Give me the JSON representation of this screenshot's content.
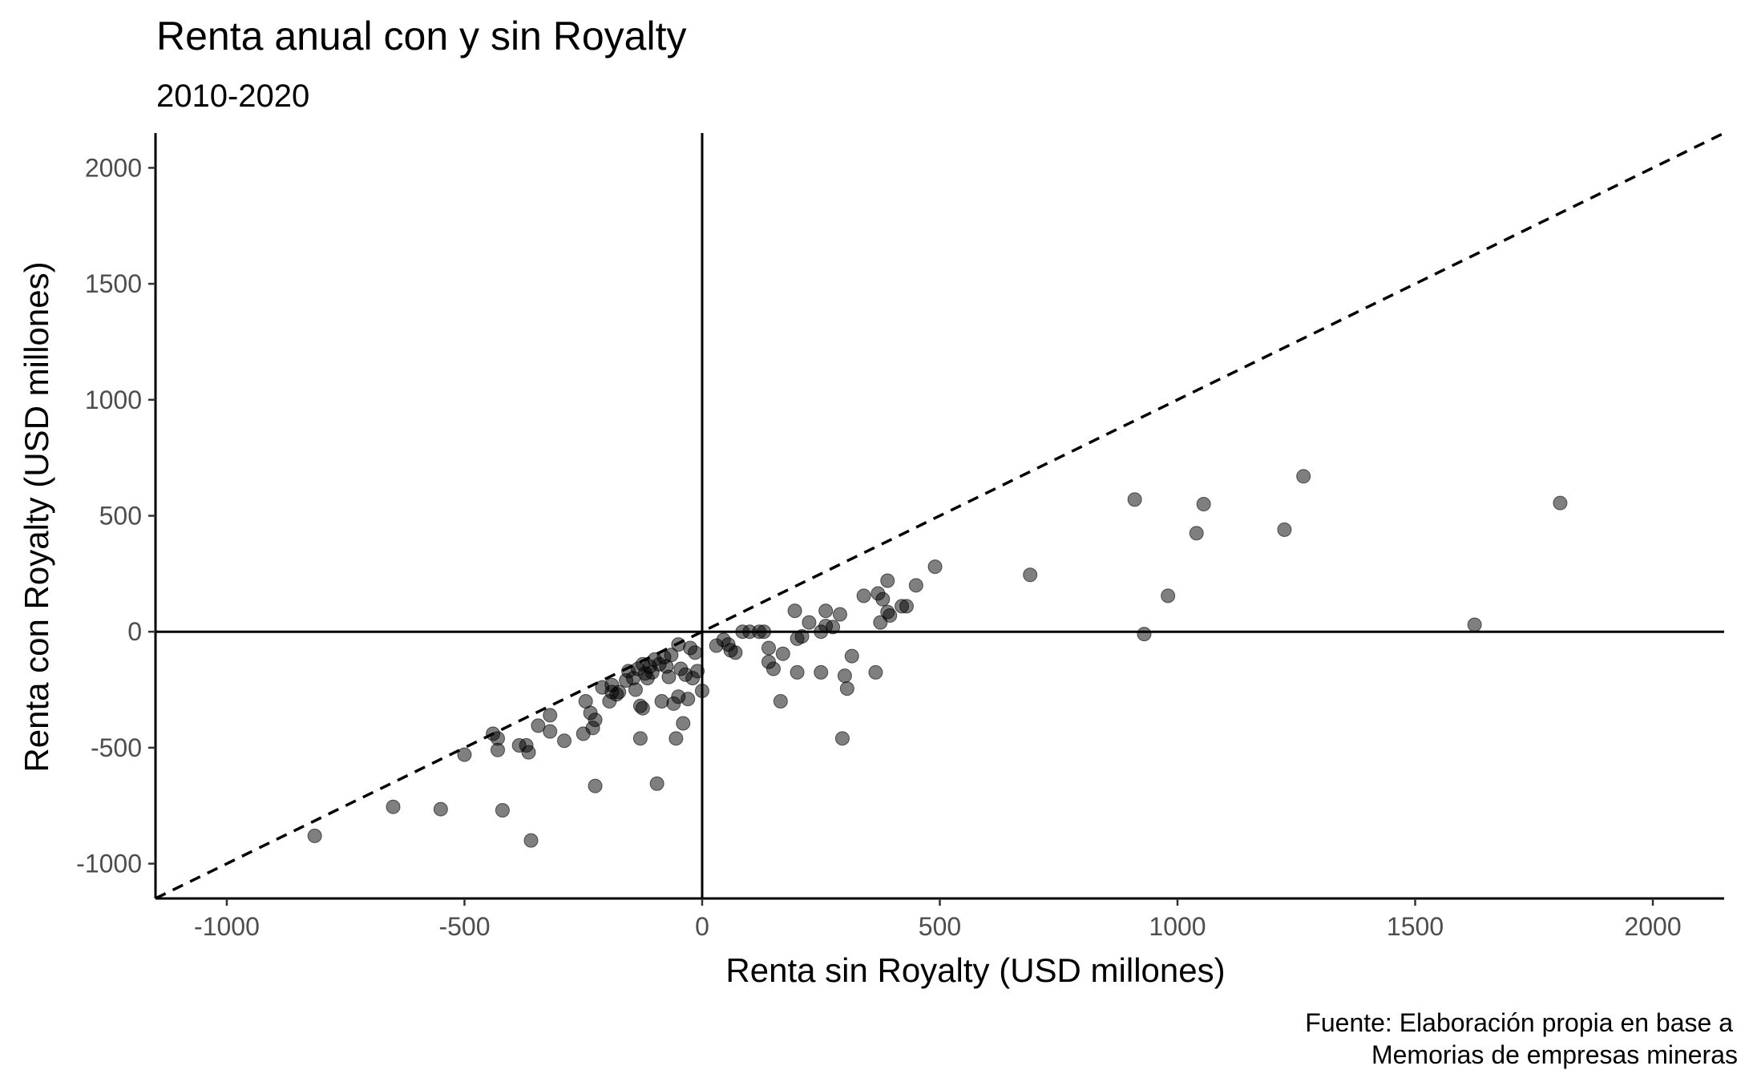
{
  "chart_data": {
    "type": "scatter",
    "title": "Renta anual con y sin Royalty",
    "subtitle": "2010-2020",
    "xlabel": "Renta sin Royalty (USD millones)",
    "ylabel": "Renta con Royalty (USD millones)",
    "caption": [
      "Fuente: Elaboración propia en base a",
      "Memorias de empresas mineras"
    ],
    "xlim": [
      -1150,
      2150
    ],
    "ylim": [
      -1150,
      2150
    ],
    "xticks": [
      -1000,
      -500,
      0,
      500,
      1000,
      1500,
      2000
    ],
    "yticks": [
      -1000,
      -500,
      0,
      500,
      1000,
      1500,
      2000
    ],
    "xtick_labels": [
      "-1000",
      "-500",
      "0",
      "500",
      "1000",
      "1500",
      "2000"
    ],
    "ytick_labels": [
      "-1000",
      "-500",
      "0",
      "500",
      "1000",
      "1500",
      "2000"
    ],
    "grid": false,
    "reference_lines": [
      "y = x (dashed)",
      "x = 0",
      "y = 0"
    ],
    "point_color": "#000000",
    "point_opacity": 0.5,
    "points": [
      {
        "x": -815,
        "y": -880
      },
      {
        "x": -650,
        "y": -755
      },
      {
        "x": -550,
        "y": -765
      },
      {
        "x": -420,
        "y": -770
      },
      {
        "x": -360,
        "y": -900
      },
      {
        "x": -500,
        "y": -530
      },
      {
        "x": -440,
        "y": -440
      },
      {
        "x": -430,
        "y": -460
      },
      {
        "x": -430,
        "y": -510
      },
      {
        "x": -385,
        "y": -490
      },
      {
        "x": -370,
        "y": -490
      },
      {
        "x": -365,
        "y": -520
      },
      {
        "x": -345,
        "y": -405
      },
      {
        "x": -320,
        "y": -360
      },
      {
        "x": -320,
        "y": -430
      },
      {
        "x": -290,
        "y": -470
      },
      {
        "x": -250,
        "y": -440
      },
      {
        "x": -245,
        "y": -300
      },
      {
        "x": -235,
        "y": -350
      },
      {
        "x": -230,
        "y": -415
      },
      {
        "x": -225,
        "y": -380
      },
      {
        "x": -225,
        "y": -665
      },
      {
        "x": -210,
        "y": -240
      },
      {
        "x": -195,
        "y": -300
      },
      {
        "x": -190,
        "y": -260
      },
      {
        "x": -190,
        "y": -230
      },
      {
        "x": -180,
        "y": -270
      },
      {
        "x": -175,
        "y": -260
      },
      {
        "x": -160,
        "y": -210
      },
      {
        "x": -155,
        "y": -170
      },
      {
        "x": -145,
        "y": -200
      },
      {
        "x": -140,
        "y": -250
      },
      {
        "x": -135,
        "y": -160
      },
      {
        "x": -130,
        "y": -320
      },
      {
        "x": -130,
        "y": -460
      },
      {
        "x": -125,
        "y": -330
      },
      {
        "x": -125,
        "y": -140
      },
      {
        "x": -120,
        "y": -180
      },
      {
        "x": -115,
        "y": -200
      },
      {
        "x": -110,
        "y": -150
      },
      {
        "x": -105,
        "y": -175
      },
      {
        "x": -100,
        "y": -120
      },
      {
        "x": -95,
        "y": -655
      },
      {
        "x": -90,
        "y": -140
      },
      {
        "x": -85,
        "y": -300
      },
      {
        "x": -80,
        "y": -110
      },
      {
        "x": -75,
        "y": -150
      },
      {
        "x": -70,
        "y": -195
      },
      {
        "x": -65,
        "y": -100
      },
      {
        "x": -60,
        "y": -310
      },
      {
        "x": -55,
        "y": -460
      },
      {
        "x": -50,
        "y": -280
      },
      {
        "x": -50,
        "y": -55
      },
      {
        "x": -45,
        "y": -160
      },
      {
        "x": -40,
        "y": -395
      },
      {
        "x": -35,
        "y": -185
      },
      {
        "x": -30,
        "y": -290
      },
      {
        "x": -25,
        "y": -70
      },
      {
        "x": -20,
        "y": -200
      },
      {
        "x": -15,
        "y": -90
      },
      {
        "x": -10,
        "y": -170
      },
      {
        "x": 0,
        "y": -255
      },
      {
        "x": 30,
        "y": -60
      },
      {
        "x": 45,
        "y": -35
      },
      {
        "x": 55,
        "y": -55
      },
      {
        "x": 60,
        "y": -80
      },
      {
        "x": 70,
        "y": -90
      },
      {
        "x": 85,
        "y": 0
      },
      {
        "x": 100,
        "y": 0
      },
      {
        "x": 120,
        "y": 0
      },
      {
        "x": 130,
        "y": 0
      },
      {
        "x": 140,
        "y": -70
      },
      {
        "x": 140,
        "y": -130
      },
      {
        "x": 150,
        "y": -160
      },
      {
        "x": 165,
        "y": -300
      },
      {
        "x": 170,
        "y": -95
      },
      {
        "x": 195,
        "y": 90
      },
      {
        "x": 200,
        "y": -30
      },
      {
        "x": 200,
        "y": -175
      },
      {
        "x": 210,
        "y": -20
      },
      {
        "x": 225,
        "y": 40
      },
      {
        "x": 250,
        "y": 0
      },
      {
        "x": 250,
        "y": -175
      },
      {
        "x": 260,
        "y": 25
      },
      {
        "x": 260,
        "y": 90
      },
      {
        "x": 275,
        "y": 20
      },
      {
        "x": 290,
        "y": 75
      },
      {
        "x": 295,
        "y": -460
      },
      {
        "x": 300,
        "y": -190
      },
      {
        "x": 305,
        "y": -245
      },
      {
        "x": 315,
        "y": -105
      },
      {
        "x": 340,
        "y": 155
      },
      {
        "x": 365,
        "y": -175
      },
      {
        "x": 370,
        "y": 165
      },
      {
        "x": 375,
        "y": 40
      },
      {
        "x": 380,
        "y": 140
      },
      {
        "x": 390,
        "y": 220
      },
      {
        "x": 390,
        "y": 85
      },
      {
        "x": 395,
        "y": 70
      },
      {
        "x": 420,
        "y": 110
      },
      {
        "x": 430,
        "y": 110
      },
      {
        "x": 450,
        "y": 200
      },
      {
        "x": 490,
        "y": 280
      },
      {
        "x": 690,
        "y": 245
      },
      {
        "x": 910,
        "y": 570
      },
      {
        "x": 930,
        "y": -10
      },
      {
        "x": 980,
        "y": 155
      },
      {
        "x": 1040,
        "y": 425
      },
      {
        "x": 1055,
        "y": 550
      },
      {
        "x": 1225,
        "y": 440
      },
      {
        "x": 1265,
        "y": 670
      },
      {
        "x": 1625,
        "y": 30
      },
      {
        "x": 1805,
        "y": 555
      }
    ]
  }
}
